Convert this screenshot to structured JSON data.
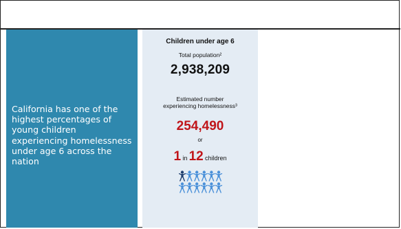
{
  "left_panel": {
    "text": "California has one of the highest percentages of young children experiencing homelessness under age 6 across the nation"
  },
  "card": {
    "title": "Children under age 6",
    "total_population_label": "Total population²",
    "total_population_value": "2,938,209",
    "estimated_label_line1": "Estimated number",
    "estimated_label_line2": "experiencing homelessness³",
    "homeless_value": "254,490",
    "or_text": "or",
    "ratio_numerator": "1",
    "ratio_in": "in",
    "ratio_denominator": "12",
    "ratio_unit": "children"
  },
  "icons": {
    "name": "children-pictogram",
    "total": 12,
    "highlighted": 1,
    "highlight_color": "#1f3e6e",
    "base_color": "#4a90d9"
  },
  "colors": {
    "panel": "#2f88ae",
    "card_bg": "#e4ecf4",
    "accent_red": "#c0151a"
  }
}
